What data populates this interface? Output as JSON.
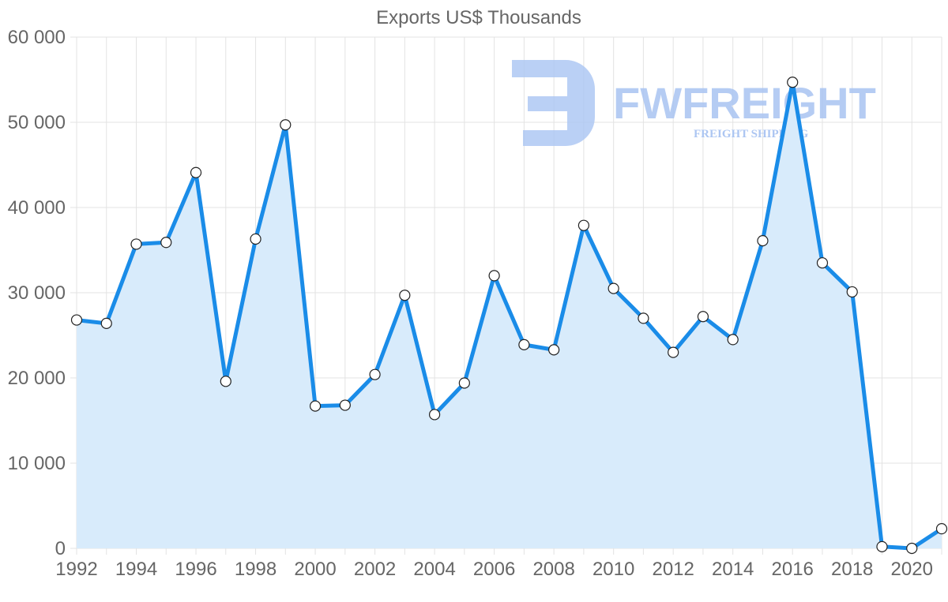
{
  "chart_data": {
    "type": "line",
    "fill": "area",
    "title": "Exports US$ Thousands",
    "xlabel": "",
    "ylabel": "",
    "ylim": [
      0,
      60000
    ],
    "grid": true,
    "legend": "none",
    "y_ticks": [
      {
        "value": 0,
        "label": "0"
      },
      {
        "value": 10000,
        "label": "10 000"
      },
      {
        "value": 20000,
        "label": "20 000"
      },
      {
        "value": 30000,
        "label": "30 000"
      },
      {
        "value": 40000,
        "label": "40 000"
      },
      {
        "value": 50000,
        "label": "50 000"
      },
      {
        "value": 60000,
        "label": "60 000"
      }
    ],
    "x_tick_labels": [
      "1992",
      "1994",
      "1996",
      "1998",
      "2000",
      "2002",
      "2004",
      "2006",
      "2008",
      "2010",
      "2012",
      "2014",
      "2016",
      "2018",
      "2020"
    ],
    "x": [
      1992,
      1993,
      1994,
      1995,
      1996,
      1997,
      1998,
      1999,
      2000,
      2001,
      2002,
      2003,
      2004,
      2005,
      2006,
      2007,
      2008,
      2009,
      2010,
      2011,
      2012,
      2013,
      2014,
      2015,
      2016,
      2017,
      2018,
      2019,
      2020,
      2021
    ],
    "series": [
      {
        "name": "Exports",
        "color": "#1a8ce8",
        "fill_color": "#d8ebfb",
        "values": [
          26800,
          26400,
          35700,
          35900,
          44100,
          19600,
          36300,
          49700,
          16700,
          16800,
          20400,
          29700,
          15700,
          19400,
          32000,
          23900,
          23300,
          37900,
          30500,
          27000,
          23000,
          27200,
          24500,
          36100,
          54700,
          33500,
          30100,
          200,
          0,
          2300
        ]
      }
    ]
  },
  "watermark": {
    "brand": "FWFREIGHT",
    "tagline": "FREIGHT SHIPPING",
    "color": "#a9c4f2"
  }
}
